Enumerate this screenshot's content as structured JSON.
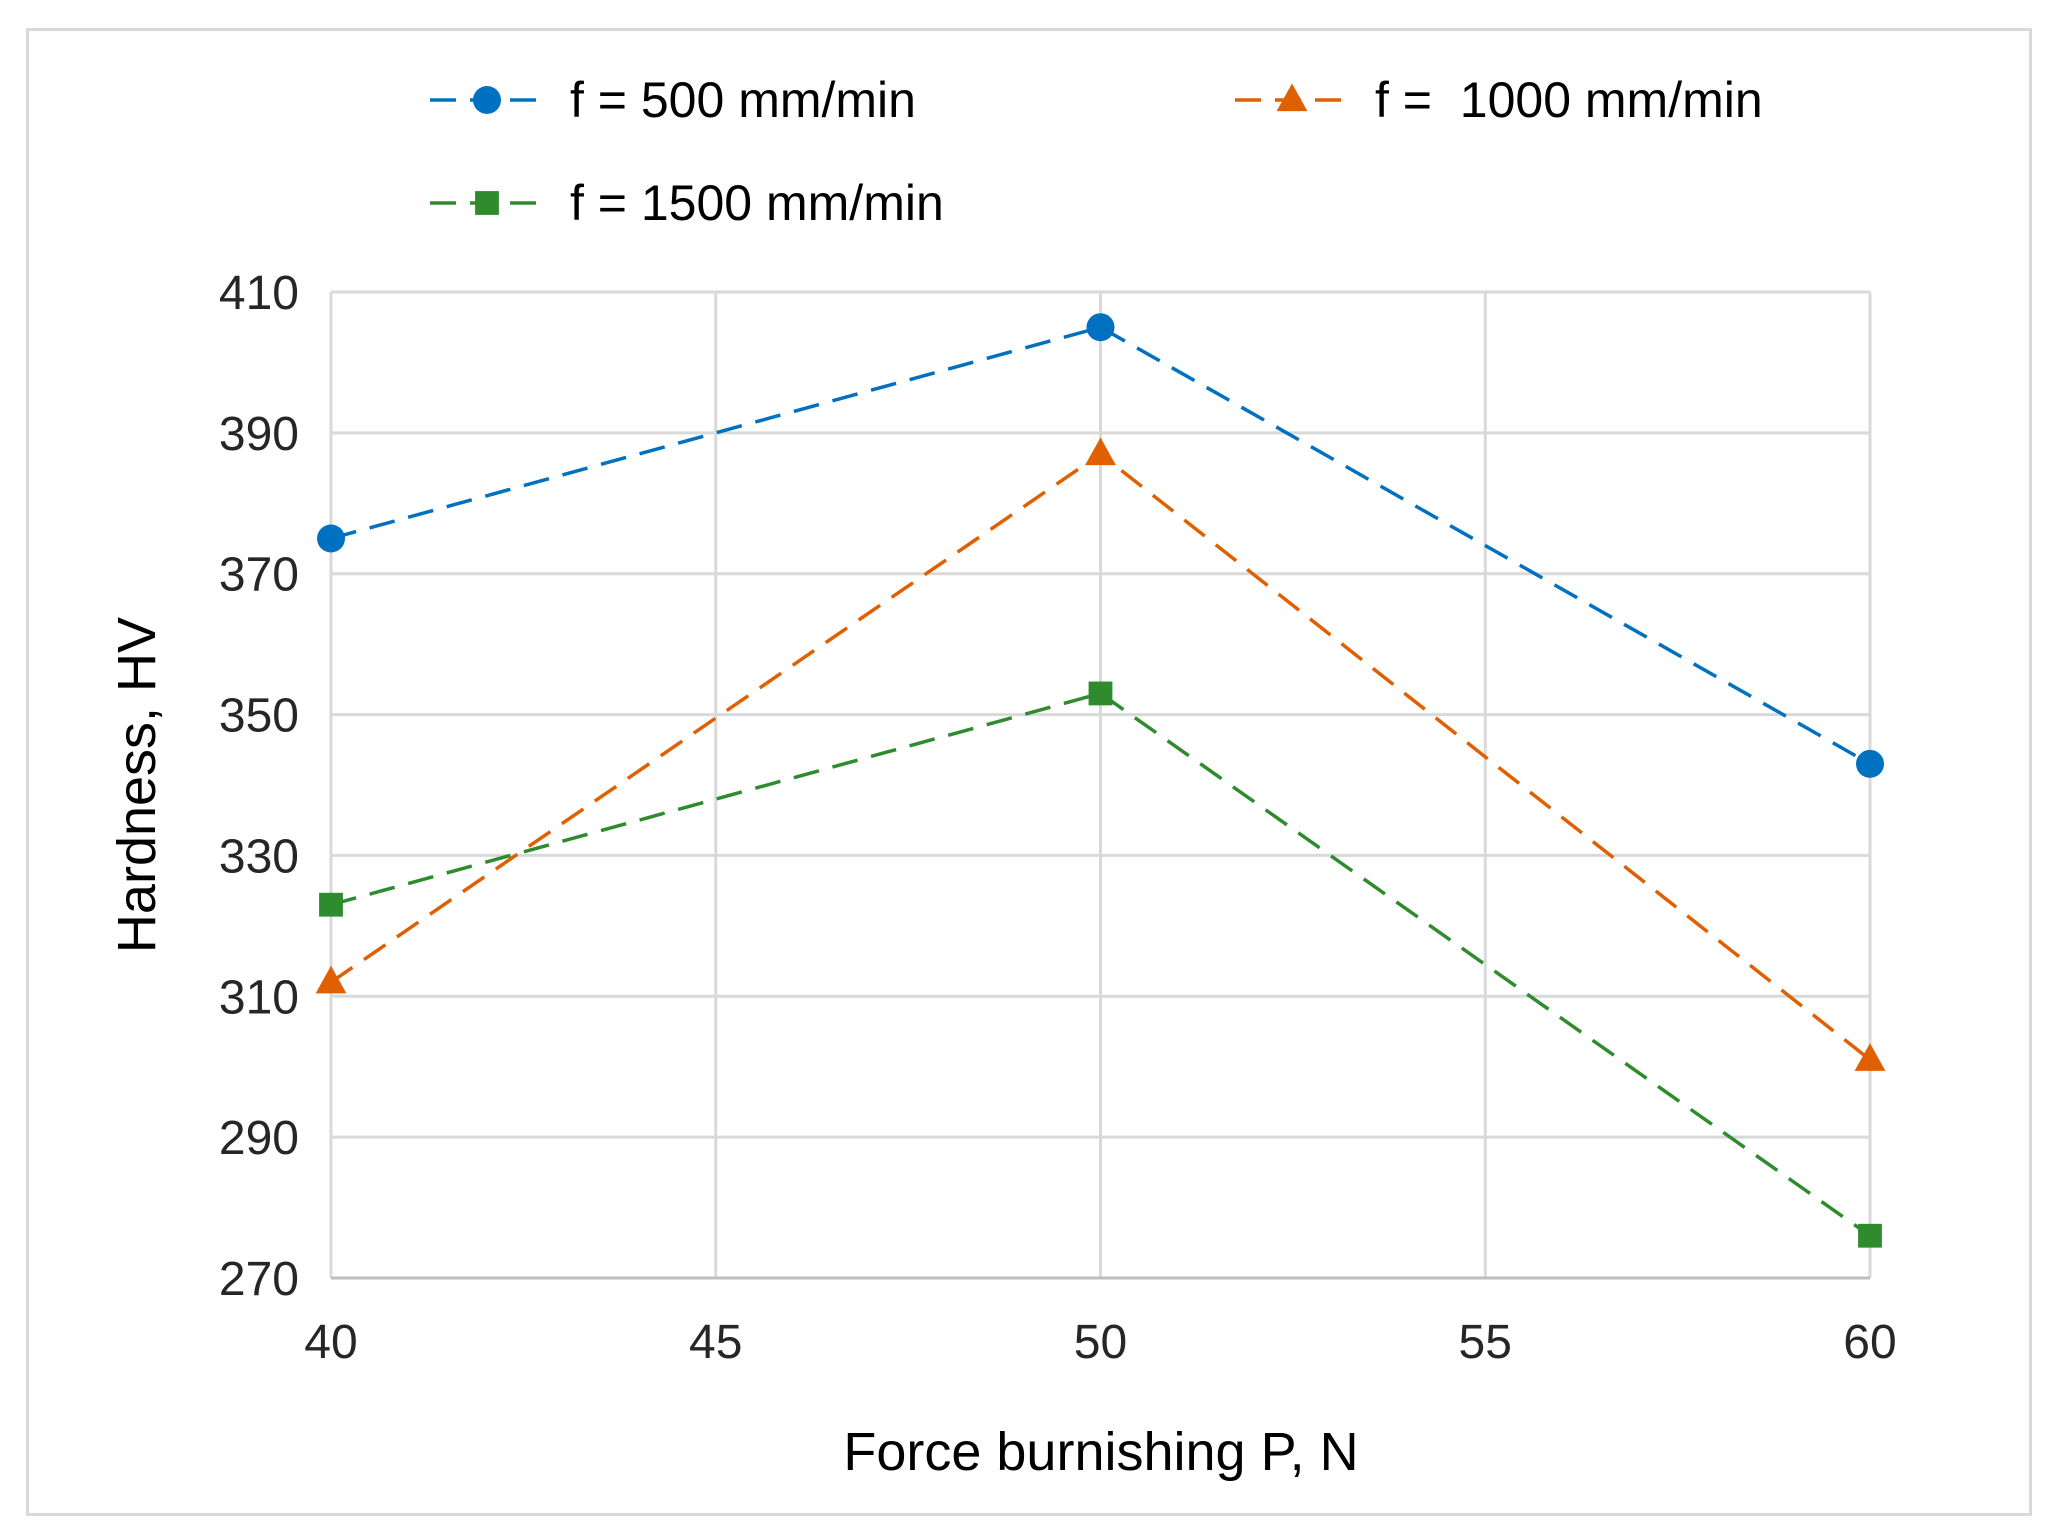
{
  "chart_data": {
    "type": "line",
    "title": "",
    "xlabel": "Force burnishing P, N",
    "ylabel": "Hardness, HV",
    "x": [
      40,
      50,
      60
    ],
    "xlim": [
      40,
      60
    ],
    "ylim": [
      270,
      410
    ],
    "xticks": [
      40,
      45,
      50,
      55,
      60
    ],
    "yticks": [
      270,
      290,
      310,
      330,
      350,
      370,
      390,
      410
    ],
    "grid": true,
    "legend_position": "top",
    "series": [
      {
        "name": "f = 500 mm/min",
        "values": [
          375,
          405,
          343
        ],
        "color": "#0070c0",
        "marker": "circle",
        "line": "dashed"
      },
      {
        "name": "f =  1000 mm/min",
        "values": [
          312,
          387,
          301
        ],
        "color": "#e06000",
        "marker": "triangle",
        "line": "dashed"
      },
      {
        "name": "f = 1500 mm/min",
        "values": [
          323,
          353,
          276
        ],
        "color": "#2e8b2e",
        "marker": "square",
        "line": "dashed"
      }
    ]
  }
}
